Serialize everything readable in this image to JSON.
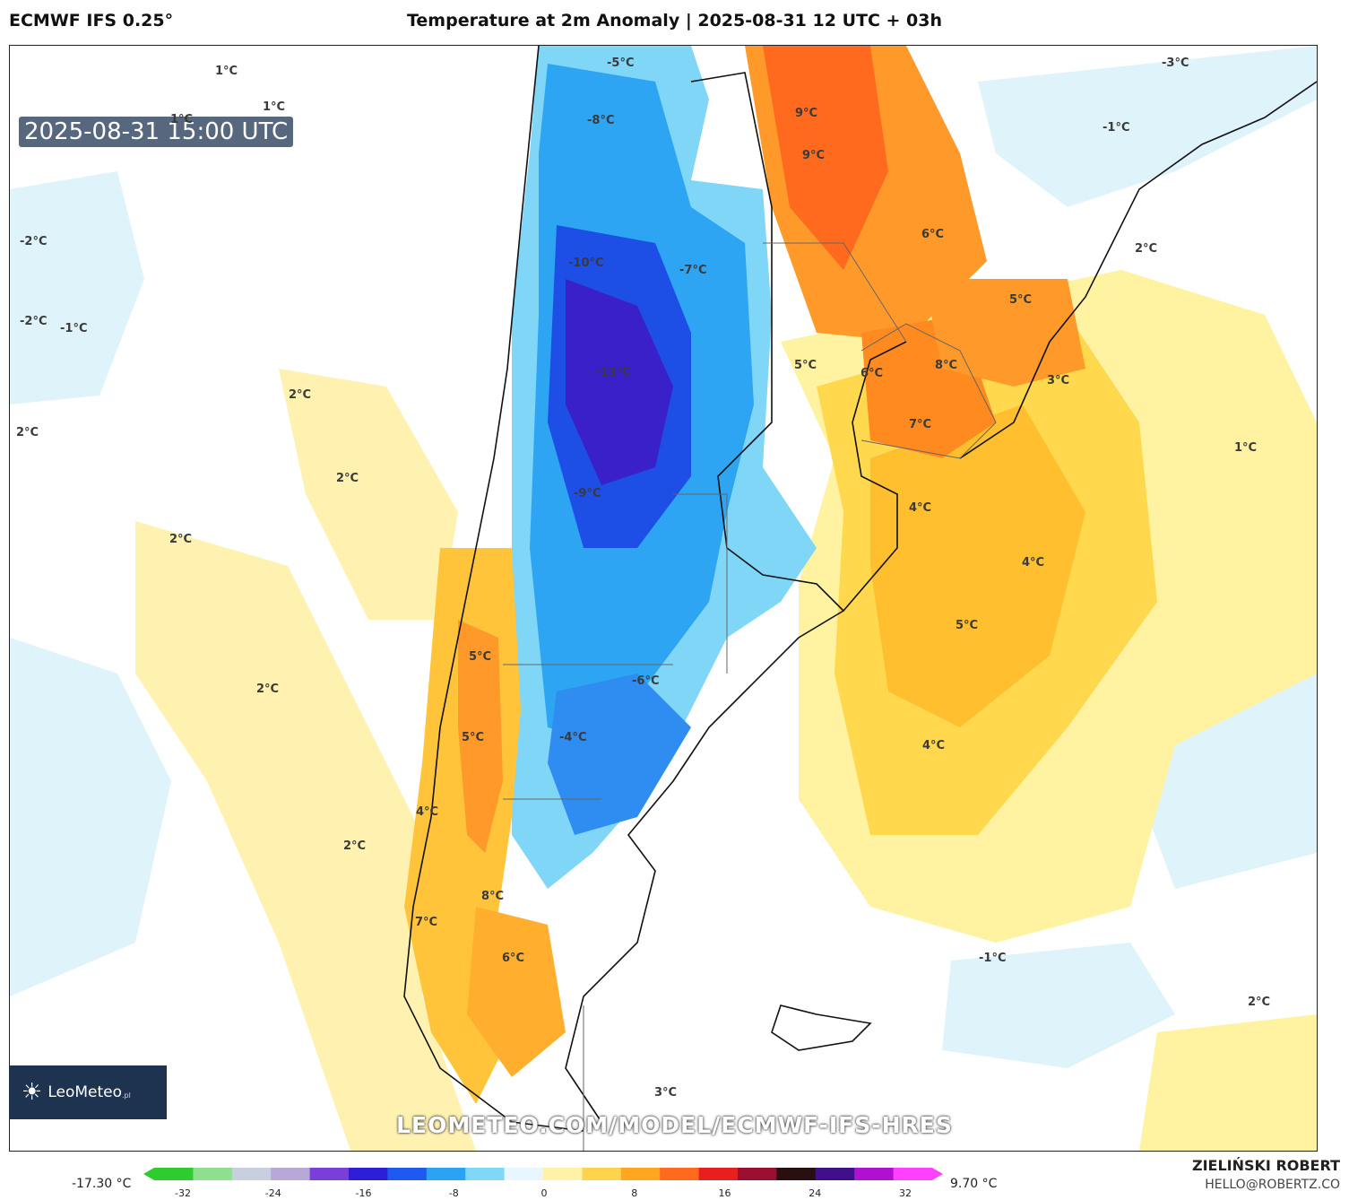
{
  "header": {
    "model": "ECMWF IFS 0.25°",
    "title": "Temperature at 2m Anomaly | 2025-08-31 12 UTC + 03h"
  },
  "map": {
    "valid_time": "2025-08-31 15:00 UTC",
    "labels": [
      {
        "id": "l1",
        "text": "1°C"
      },
      {
        "id": "l2",
        "text": "1°C"
      },
      {
        "id": "l3",
        "text": "1°C"
      },
      {
        "id": "l4",
        "text": "-2°C"
      },
      {
        "id": "l5",
        "text": "-2°C"
      },
      {
        "id": "l6",
        "text": "-1°C"
      },
      {
        "id": "l7",
        "text": "2°C"
      },
      {
        "id": "l8",
        "text": "2°C"
      },
      {
        "id": "l9",
        "text": "2°C"
      },
      {
        "id": "l10",
        "text": "2°C"
      },
      {
        "id": "l11",
        "text": "2°C"
      },
      {
        "id": "l12",
        "text": "2°C"
      },
      {
        "id": "l13",
        "text": "-5°C"
      },
      {
        "id": "l14",
        "text": "-8°C"
      },
      {
        "id": "l15",
        "text": "-10°C"
      },
      {
        "id": "l16",
        "text": "-7°C"
      },
      {
        "id": "l17",
        "text": "-13°C"
      },
      {
        "id": "l18",
        "text": "-9°C"
      },
      {
        "id": "l19",
        "text": "-6°C"
      },
      {
        "id": "l20",
        "text": "-4°C"
      },
      {
        "id": "l21",
        "text": "5°C"
      },
      {
        "id": "l22",
        "text": "5°C"
      },
      {
        "id": "l23",
        "text": "4°C"
      },
      {
        "id": "l24",
        "text": "8°C"
      },
      {
        "id": "l25",
        "text": "7°C"
      },
      {
        "id": "l26",
        "text": "6°C"
      },
      {
        "id": "l27",
        "text": "9°C"
      },
      {
        "id": "l28",
        "text": "9°C"
      },
      {
        "id": "l29",
        "text": "6°C"
      },
      {
        "id": "l30",
        "text": "5°C"
      },
      {
        "id": "l31",
        "text": "5°C"
      },
      {
        "id": "l32",
        "text": "6°C"
      },
      {
        "id": "l33",
        "text": "8°C"
      },
      {
        "id": "l34",
        "text": "7°C"
      },
      {
        "id": "l35",
        "text": "4°C"
      },
      {
        "id": "l36",
        "text": "4°C"
      },
      {
        "id": "l37",
        "text": "5°C"
      },
      {
        "id": "l38",
        "text": "4°C"
      },
      {
        "id": "l39",
        "text": "3°C"
      },
      {
        "id": "l40",
        "text": "2°C"
      },
      {
        "id": "l41",
        "text": "1°C"
      },
      {
        "id": "l42",
        "text": "-3°C"
      },
      {
        "id": "l43",
        "text": "-1°C"
      },
      {
        "id": "l44",
        "text": "-1°C"
      },
      {
        "id": "l45",
        "text": "2°C"
      },
      {
        "id": "l46",
        "text": "3°C"
      }
    ]
  },
  "branding": {
    "logo_text": "LeoMeteo",
    "logo_suffix": ".pl",
    "watermark": "LEOMETEO.COM/MODEL/ECMWF-IFS-HRES",
    "author": "ZIELIŃSKI ROBERT",
    "email": "HELLO@ROBERTZ.CO"
  },
  "legend": {
    "min_value": "-17.30 °C",
    "max_value": "9.70 °C",
    "ticks": [
      "-32",
      "-24",
      "-16",
      "-8",
      "0",
      "8",
      "16",
      "24",
      "32"
    ],
    "colors": [
      "#2ecc2e",
      "#8ee08e",
      "#c8d0e0",
      "#b7a8d8",
      "#7a3fd8",
      "#2d1fd8",
      "#1f5af0",
      "#2aa3f5",
      "#7fd8f8",
      "#e8f7ff",
      "#fff2a8",
      "#ffd34d",
      "#ffa51f",
      "#ff6a1f",
      "#e81f1f",
      "#9a0f2f",
      "#2a0f10",
      "#40108a",
      "#b010d0",
      "#ff40ff"
    ]
  }
}
